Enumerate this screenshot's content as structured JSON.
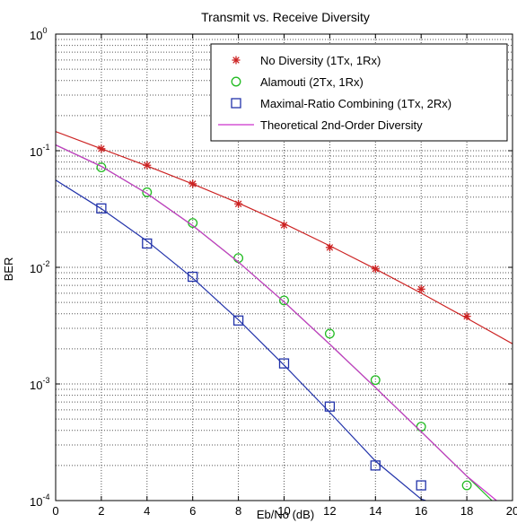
{
  "chart_data": {
    "type": "line",
    "title": "Transmit vs. Receive Diversity",
    "xlabel": "Eb/No (dB)",
    "ylabel": "BER",
    "xlim": [
      0,
      20
    ],
    "ylim": [
      0.0001,
      1
    ],
    "yscale": "log",
    "grid": true,
    "grid_style": "dotted",
    "legend_position": "top-right",
    "x_ticks": [
      0,
      2,
      4,
      6,
      8,
      10,
      12,
      14,
      16,
      18,
      20
    ],
    "y_ticks": [
      {
        "value": 1,
        "base": "10",
        "exp": "0"
      },
      {
        "value": 0.1,
        "base": "10",
        "exp": "-1"
      },
      {
        "value": 0.01,
        "base": "10",
        "exp": "-2"
      },
      {
        "value": 0.001,
        "base": "10",
        "exp": "-3"
      },
      {
        "value": 0.0001,
        "base": "10",
        "exp": "-4"
      }
    ],
    "series": [
      {
        "name": "No Diversity (1Tx, 1Rx)",
        "color": "#cc2222",
        "marker": "star",
        "x": [
          2,
          4,
          6,
          8,
          10,
          12,
          14,
          16,
          18
        ],
        "y": [
          0.104,
          0.075,
          0.052,
          0.035,
          0.023,
          0.0148,
          0.0097,
          0.0065,
          0.0038
        ],
        "fit_x": [
          0,
          2,
          4,
          6,
          8,
          10,
          12,
          14,
          16,
          18,
          20
        ],
        "fit_y": [
          0.146,
          0.104,
          0.0741,
          0.0519,
          0.0356,
          0.0237,
          0.0153,
          0.00969,
          0.00601,
          0.00366,
          0.00221
        ]
      },
      {
        "name": "Alamouti (2Tx, 1Rx)",
        "color": "#22bb22",
        "marker": "circle",
        "x": [
          2,
          4,
          6,
          8,
          10,
          12,
          14,
          16,
          18
        ],
        "y": [
          0.072,
          0.044,
          0.024,
          0.012,
          0.0052,
          0.0027,
          0.00108,
          0.00043,
          0.000135
        ],
        "fit_x": [
          0,
          2,
          4,
          6,
          8,
          10,
          12,
          14,
          16,
          18,
          19.1
        ],
        "fit_y": [
          0.112,
          0.0734,
          0.0429,
          0.0228,
          0.0111,
          0.00505,
          0.00219,
          0.00093,
          0.00039,
          0.000162,
          0.0001
        ]
      },
      {
        "name": "Maximal-Ratio Combining (1Tx, 2Rx)",
        "color": "#2233aa",
        "marker": "square",
        "x": [
          2,
          4,
          6,
          8,
          10,
          12,
          14,
          16
        ],
        "y": [
          0.032,
          0.016,
          0.0083,
          0.0035,
          0.0015,
          0.00064,
          0.0002,
          0.000135
        ],
        "fit_x": [
          0,
          2,
          4,
          6,
          8,
          10,
          12,
          14,
          16,
          16.2
        ],
        "fit_y": [
          0.056,
          0.0318,
          0.0168,
          0.0081,
          0.00355,
          0.00145,
          0.00057,
          0.000218,
          0.000103,
          0.0001
        ]
      },
      {
        "name": "Theoretical 2nd-Order Diversity",
        "color": "#cc33cc",
        "marker": "none",
        "x": [
          0,
          2,
          4,
          6,
          8,
          10,
          12,
          14,
          16,
          18,
          19.3
        ],
        "y": [
          0.112,
          0.0734,
          0.0429,
          0.0228,
          0.0111,
          0.00505,
          0.00219,
          0.00093,
          0.00039,
          0.000162,
          0.0001
        ]
      }
    ]
  }
}
